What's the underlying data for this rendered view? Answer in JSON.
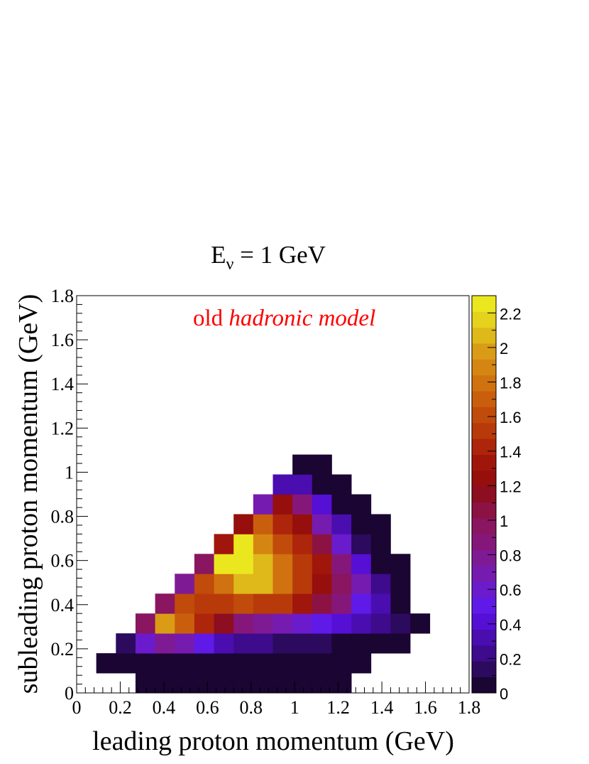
{
  "chart_data": {
    "type": "heatmap",
    "title_main": "E",
    "title_sub": "ν",
    "title_rest": " = 1 GeV",
    "annotation_plain": "old ",
    "annotation_italic": "hadronic model",
    "annotation_color": "#ff0000",
    "xlabel": "leading proton momentum (GeV)",
    "ylabel": "subleading proton momentum (GeV)",
    "xlim": [
      0,
      1.8
    ],
    "ylim": [
      0,
      1.8
    ],
    "x_ticks": [
      "0",
      "0.2",
      "0.4",
      "0.6",
      "0.8",
      "1",
      "1.2",
      "1.4",
      "1.6",
      "1.8"
    ],
    "y_ticks": [
      "0",
      "0.2",
      "0.4",
      "0.6",
      "0.8",
      "1",
      "1.2",
      "1.4",
      "1.6",
      "1.8"
    ],
    "bin_width": 0.09,
    "z_range": [
      0,
      2.3
    ],
    "z_ticks": [
      "0",
      "0.2",
      "0.4",
      "0.6",
      "0.8",
      "1",
      "1.2",
      "1.4",
      "1.6",
      "1.8",
      "2",
      "2.2"
    ],
    "palette": [
      "#1a0533",
      "#2c0a5e",
      "#3d0b8c",
      "#4a0db0",
      "#560fd4",
      "#5f1ae8",
      "#6a1ccc",
      "#761bb0",
      "#7f1a95",
      "#85177a",
      "#8a1560",
      "#8c1244",
      "#8c0e20",
      "#960f0c",
      "#a1160b",
      "#ad250a",
      "#b83a0a",
      "#c14b0b",
      "#c95f0c",
      "#cf720f",
      "#d58612",
      "#da9c16",
      "#dfb81a",
      "#e4d21c",
      "#ebe71f"
    ],
    "grid": false,
    "cells": [
      [
        3,
        0,
        0.01
      ],
      [
        4,
        0,
        0.01
      ],
      [
        5,
        0,
        0.01
      ],
      [
        6,
        0,
        0.01
      ],
      [
        7,
        0,
        0.01
      ],
      [
        8,
        0,
        0.01
      ],
      [
        9,
        0,
        0.01
      ],
      [
        10,
        0,
        0.01
      ],
      [
        11,
        0,
        0.01
      ],
      [
        12,
        0,
        0.01
      ],
      [
        13,
        0,
        0.01
      ],
      [
        1,
        1,
        0.01
      ],
      [
        2,
        1,
        0.01
      ],
      [
        3,
        1,
        0.03
      ],
      [
        4,
        1,
        0.03
      ],
      [
        5,
        1,
        0.03
      ],
      [
        6,
        1,
        0.03
      ],
      [
        7,
        1,
        0.03
      ],
      [
        8,
        1,
        0.03
      ],
      [
        9,
        1,
        0.03
      ],
      [
        10,
        1,
        0.03
      ],
      [
        11,
        1,
        0.03
      ],
      [
        12,
        1,
        0.03
      ],
      [
        13,
        1,
        0.03
      ],
      [
        14,
        1,
        0.03
      ],
      [
        2,
        2,
        0.12
      ],
      [
        3,
        2,
        0.6
      ],
      [
        4,
        2,
        0.8
      ],
      [
        5,
        2,
        0.7
      ],
      [
        6,
        2,
        0.5
      ],
      [
        7,
        2,
        0.35
      ],
      [
        8,
        2,
        0.2
      ],
      [
        9,
        2,
        0.2
      ],
      [
        10,
        2,
        0.12
      ],
      [
        11,
        2,
        0.12
      ],
      [
        12,
        2,
        0.12
      ],
      [
        13,
        2,
        0.03
      ],
      [
        14,
        2,
        0.03
      ],
      [
        15,
        2,
        0.03
      ],
      [
        16,
        2,
        0.03
      ],
      [
        3,
        3,
        0.95
      ],
      [
        4,
        3,
        1.95
      ],
      [
        5,
        3,
        1.7
      ],
      [
        6,
        3,
        1.45
      ],
      [
        7,
        3,
        1.15
      ],
      [
        8,
        3,
        0.85
      ],
      [
        9,
        3,
        0.82
      ],
      [
        10,
        3,
        0.72
      ],
      [
        11,
        3,
        0.6
      ],
      [
        12,
        3,
        0.5
      ],
      [
        13,
        3,
        0.4
      ],
      [
        14,
        3,
        0.3
      ],
      [
        15,
        3,
        0.2
      ],
      [
        16,
        3,
        0.1
      ],
      [
        17,
        3,
        0.03
      ],
      [
        4,
        4,
        0.95
      ],
      [
        5,
        4,
        1.65
      ],
      [
        6,
        4,
        1.5
      ],
      [
        7,
        4,
        1.5
      ],
      [
        8,
        4,
        1.6
      ],
      [
        9,
        4,
        1.5
      ],
      [
        10,
        4,
        1.5
      ],
      [
        11,
        4,
        1.3
      ],
      [
        12,
        4,
        1.05
      ],
      [
        13,
        4,
        0.85
      ],
      [
        14,
        4,
        0.5
      ],
      [
        15,
        4,
        0.35
      ],
      [
        16,
        4,
        0.03
      ],
      [
        5,
        5,
        0.8
      ],
      [
        6,
        5,
        1.6
      ],
      [
        7,
        5,
        1.8
      ],
      [
        8,
        5,
        2.1
      ],
      [
        9,
        5,
        2.1
      ],
      [
        10,
        5,
        1.8
      ],
      [
        11,
        5,
        1.55
      ],
      [
        12,
        5,
        1.25
      ],
      [
        13,
        5,
        1.0
      ],
      [
        14,
        5,
        0.65
      ],
      [
        15,
        5,
        0.2
      ],
      [
        16,
        5,
        0.03
      ],
      [
        6,
        6,
        0.95
      ],
      [
        7,
        6,
        2.25
      ],
      [
        8,
        6,
        2.25
      ],
      [
        9,
        6,
        2.1
      ],
      [
        10,
        6,
        1.8
      ],
      [
        11,
        6,
        1.55
      ],
      [
        12,
        6,
        1.3
      ],
      [
        13,
        6,
        0.9
      ],
      [
        14,
        6,
        0.45
      ],
      [
        15,
        6,
        0.03
      ],
      [
        16,
        6,
        0.03
      ],
      [
        7,
        7,
        1.3
      ],
      [
        8,
        7,
        2.25
      ],
      [
        9,
        7,
        1.9
      ],
      [
        10,
        7,
        1.6
      ],
      [
        11,
        7,
        1.4
      ],
      [
        12,
        7,
        1.05
      ],
      [
        13,
        7,
        0.6
      ],
      [
        14,
        7,
        0.15
      ],
      [
        15,
        7,
        0.03
      ],
      [
        8,
        8,
        1.2
      ],
      [
        9,
        8,
        1.7
      ],
      [
        10,
        8,
        1.45
      ],
      [
        11,
        8,
        1.2
      ],
      [
        12,
        8,
        0.7
      ],
      [
        13,
        8,
        0.3
      ],
      [
        14,
        8,
        0.03
      ],
      [
        15,
        8,
        0.03
      ],
      [
        9,
        9,
        0.7
      ],
      [
        10,
        9,
        1.2
      ],
      [
        11,
        9,
        0.9
      ],
      [
        12,
        9,
        0.45
      ],
      [
        13,
        9,
        0.03
      ],
      [
        14,
        9,
        0.03
      ],
      [
        10,
        10,
        0.35
      ],
      [
        11,
        10,
        0.35
      ],
      [
        12,
        10,
        0.03
      ],
      [
        13,
        10,
        0.03
      ],
      [
        11,
        11,
        0.03
      ],
      [
        12,
        11,
        0.03
      ]
    ]
  }
}
